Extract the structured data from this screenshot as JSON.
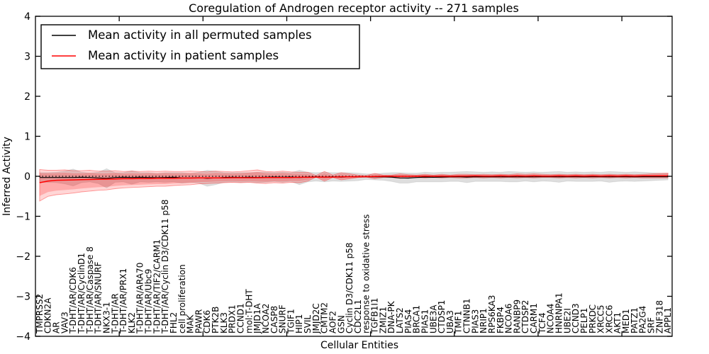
{
  "chart_data": {
    "type": "line",
    "title": "Coregulation of Androgen receptor activity -- 271 samples",
    "xlabel": "Cellular Entities",
    "ylabel": "Inferred Activity",
    "ylim": [
      -4,
      4
    ],
    "xlim": [
      0,
      76
    ],
    "grid": false,
    "legend_position": "upper left",
    "ytick_values": [
      4,
      3,
      2,
      1,
      0,
      -1,
      -2,
      -3,
      -4
    ],
    "ytick_labels": [
      "4",
      "3",
      "2",
      "1",
      "0",
      "−1",
      "−2",
      "−3",
      "−4"
    ],
    "x_major_tick_values": [
      10,
      20,
      30,
      40,
      50,
      60,
      70
    ],
    "zero_line": 0,
    "categories": [
      "TMPRSS2",
      "CDKN2A",
      "AR",
      "VAV3",
      "T-DHT/AR/CDK6",
      "T-DHT/AR/CyclinD1",
      "T-DHT/AR/Caspase 8",
      "T-DHT/AR/SNURF",
      "NKX3-1",
      "T-DHT/AR",
      "T-DHT/AR/PRX1",
      "KLK2",
      "T-DHT/AR/ARA70",
      "T-DHT/AR/Ubc9",
      "T-DHT/AR/TIF2/CARM1",
      "T-DHT/AR/Cyclin D3/CDK11 p58",
      "FHL2",
      "cell proliferation",
      "MAK",
      "PAWR",
      "CDK6",
      "PTK2B",
      "KLK3",
      "PRDX1",
      "CCND1",
      "mol:T-DHT",
      "JMJD1A",
      "NCOA2",
      "CASP8",
      "SNURF",
      "TGIF1",
      "HIP1",
      "SVIL",
      "JMJD2C",
      "CMTM2",
      "AOF2",
      "GSN",
      "Cyclin D3/CDK11 p58",
      "CDC2L1",
      "response to oxidative stress",
      "TGFB1I1",
      "ZMIZ1",
      "DNA-PK",
      "LATS2",
      "PIAS4",
      "BRCA1",
      "PIAS1",
      "UBE3A",
      "CTDSP1",
      "UBA3",
      "TMF1",
      "CTNNB1",
      "PIAS3",
      "NRIP1",
      "RPS6KA3",
      "FKBP4",
      "NCOA6",
      "RANBP9",
      "CTDSP2",
      "CARM1",
      "TCF4",
      "NCOA4",
      "HNRNPA1",
      "UBE2I",
      "CCND3",
      "PELP1",
      "PRKDC",
      "XRCC5",
      "XRCC6",
      "AKT1",
      "MED1",
      "PATZ1",
      "PA2G4",
      "SRF",
      "ZNF318",
      "APPL1"
    ],
    "series": [
      {
        "name": "Mean activity in all permuted samples",
        "color": "#000000",
        "values": [
          -0.03,
          -0.03,
          -0.03,
          -0.03,
          -0.03,
          -0.025,
          -0.03,
          -0.04,
          -0.05,
          -0.03,
          -0.025,
          -0.03,
          -0.025,
          -0.03,
          -0.035,
          -0.03,
          -0.025,
          -0.04,
          -0.04,
          -0.035,
          -0.05,
          -0.04,
          -0.03,
          -0.025,
          -0.03,
          -0.025,
          -0.03,
          -0.025,
          -0.02,
          -0.025,
          -0.02,
          -0.03,
          -0.02,
          -0.015,
          -0.02,
          -0.015,
          -0.02,
          -0.015,
          -0.015,
          -0.01,
          -0.015,
          -0.01,
          -0.02,
          -0.04,
          -0.045,
          -0.03,
          -0.02,
          -0.025,
          -0.02,
          -0.015,
          -0.01,
          -0.02,
          -0.01,
          -0.015,
          -0.01,
          -0.015,
          -0.01,
          -0.015,
          -0.01,
          -0.015,
          -0.01,
          -0.01,
          -0.015,
          -0.01,
          -0.01,
          -0.015,
          -0.01,
          -0.01,
          -0.015,
          -0.01,
          -0.01,
          -0.015,
          -0.01,
          -0.01,
          -0.01,
          -0.01
        ]
      },
      {
        "name": "Mean activity in patient samples",
        "color": "#ff0000",
        "values": [
          -0.16,
          -0.12,
          -0.1,
          -0.095,
          -0.09,
          -0.085,
          -0.08,
          -0.075,
          -0.07,
          -0.065,
          -0.06,
          -0.06,
          -0.055,
          -0.055,
          -0.05,
          -0.05,
          -0.05,
          -0.045,
          -0.045,
          -0.04,
          -0.04,
          -0.04,
          -0.04,
          -0.035,
          -0.035,
          -0.035,
          -0.035,
          -0.03,
          -0.03,
          -0.03,
          -0.03,
          -0.025,
          -0.025,
          -0.02,
          -0.02,
          -0.02,
          -0.015,
          -0.015,
          -0.01,
          -0.01,
          -0.005,
          0,
          0,
          0,
          0,
          0,
          0.005,
          0,
          0.005,
          0,
          0.005,
          0.005,
          0.01,
          0.005,
          0.005,
          0.01,
          0.005,
          0.01,
          0.005,
          0.01,
          0.005,
          0.005,
          0.01,
          0.005,
          0.01,
          0.005,
          0.01,
          0.005,
          0.01,
          0.005,
          0.01,
          0.005,
          0.01,
          0.01,
          0.01,
          0.01
        ]
      }
    ],
    "bands": [
      {
        "name": "std band of permuted samples",
        "color": "#000000",
        "fill_opacity": 0.13,
        "upper": [
          0.09,
          0.09,
          0.1,
          0.13,
          0.18,
          0.1,
          0.08,
          0.1,
          0.19,
          0.09,
          0.09,
          0.14,
          0.09,
          0.09,
          0.07,
          0.09,
          0.09,
          0.09,
          0.07,
          0.1,
          0.15,
          0.13,
          0.09,
          0.09,
          0.09,
          0.09,
          0.1,
          0.1,
          0.09,
          0.1,
          0.09,
          0.15,
          0.1,
          0.09,
          0.1,
          0.09,
          0.09,
          0.09,
          0.08,
          0.06,
          0.06,
          0.08,
          0.09,
          0.09,
          0.08,
          0.08,
          0.1,
          0.09,
          0.1,
          0.1,
          0.11,
          0.12,
          0.11,
          0.1,
          0.11,
          0.1,
          0.12,
          0.11,
          0.1,
          0.11,
          0.1,
          0.11,
          0.12,
          0.1,
          0.11,
          0.1,
          0.11,
          0.1,
          0.12,
          0.11,
          0.1,
          0.11,
          0.1,
          0.09,
          0.08,
          0.07
        ],
        "lower": [
          -0.15,
          -0.15,
          -0.16,
          -0.19,
          -0.24,
          -0.16,
          -0.14,
          -0.18,
          -0.29,
          -0.15,
          -0.14,
          -0.2,
          -0.14,
          -0.15,
          -0.14,
          -0.15,
          -0.14,
          -0.17,
          -0.15,
          -0.17,
          -0.25,
          -0.21,
          -0.15,
          -0.14,
          -0.15,
          -0.14,
          -0.16,
          -0.15,
          -0.13,
          -0.15,
          -0.13,
          -0.21,
          -0.14,
          -0.12,
          -0.14,
          -0.12,
          -0.13,
          -0.12,
          -0.11,
          -0.08,
          -0.09,
          -0.1,
          -0.13,
          -0.17,
          -0.17,
          -0.14,
          -0.14,
          -0.14,
          -0.14,
          -0.13,
          -0.13,
          -0.16,
          -0.13,
          -0.13,
          -0.13,
          -0.13,
          -0.14,
          -0.14,
          -0.12,
          -0.14,
          -0.12,
          -0.13,
          -0.15,
          -0.12,
          -0.13,
          -0.13,
          -0.13,
          -0.12,
          -0.15,
          -0.13,
          -0.12,
          -0.13,
          -0.12,
          -0.11,
          -0.1,
          -0.09
        ]
      },
      {
        "name": "std band of patient samples",
        "color": "#ff0000",
        "fill_opacity": 0.16,
        "upper": [
          0.17,
          0.15,
          0.15,
          0.16,
          0.14,
          0.14,
          0.15,
          0.13,
          0.13,
          0.14,
          0.12,
          0.13,
          0.12,
          0.13,
          0.12,
          0.13,
          0.12,
          0.12,
          0.13,
          0.12,
          0.11,
          0.13,
          0.12,
          0.11,
          0.12,
          0.14,
          0.16,
          0.12,
          0.11,
          0.13,
          0.11,
          0.1,
          0.1,
          0.02,
          0.12,
          0.03,
          0.09,
          0.06,
          0.03,
          0.02,
          0.07,
          0.03,
          0.03,
          0.06,
          0.04,
          0.03,
          0.05,
          0.03,
          0.05,
          0.03,
          0.05,
          0.05,
          0.04,
          0.05,
          0.04,
          0.05,
          0.04,
          0.06,
          0.05,
          0.06,
          0.05,
          0.04,
          0.05,
          0.04,
          0.05,
          0.04,
          0.05,
          0.04,
          0.05,
          0.04,
          0.05,
          0.04,
          0.05,
          0.06,
          0.07,
          0.08
        ],
        "lower": [
          -0.62,
          -0.5,
          -0.46,
          -0.44,
          -0.42,
          -0.39,
          -0.37,
          -0.35,
          -0.34,
          -0.31,
          -0.29,
          -0.28,
          -0.27,
          -0.26,
          -0.25,
          -0.25,
          -0.23,
          -0.22,
          -0.21,
          -0.19,
          -0.18,
          -0.17,
          -0.16,
          -0.15,
          -0.16,
          -0.15,
          -0.17,
          -0.18,
          -0.16,
          -0.17,
          -0.15,
          -0.16,
          -0.12,
          -0.02,
          -0.12,
          -0.03,
          -0.09,
          -0.06,
          -0.03,
          -0.02,
          -0.06,
          -0.03,
          -0.03,
          -0.05,
          -0.04,
          -0.03,
          -0.04,
          -0.03,
          -0.04,
          -0.03,
          -0.04,
          -0.04,
          -0.03,
          -0.04,
          -0.03,
          -0.04,
          -0.03,
          -0.04,
          -0.03,
          -0.04,
          -0.03,
          -0.03,
          -0.04,
          -0.03,
          -0.04,
          -0.03,
          -0.04,
          -0.03,
          -0.04,
          -0.03,
          -0.04,
          -0.03,
          -0.04,
          -0.04,
          -0.04,
          -0.04
        ]
      }
    ]
  }
}
